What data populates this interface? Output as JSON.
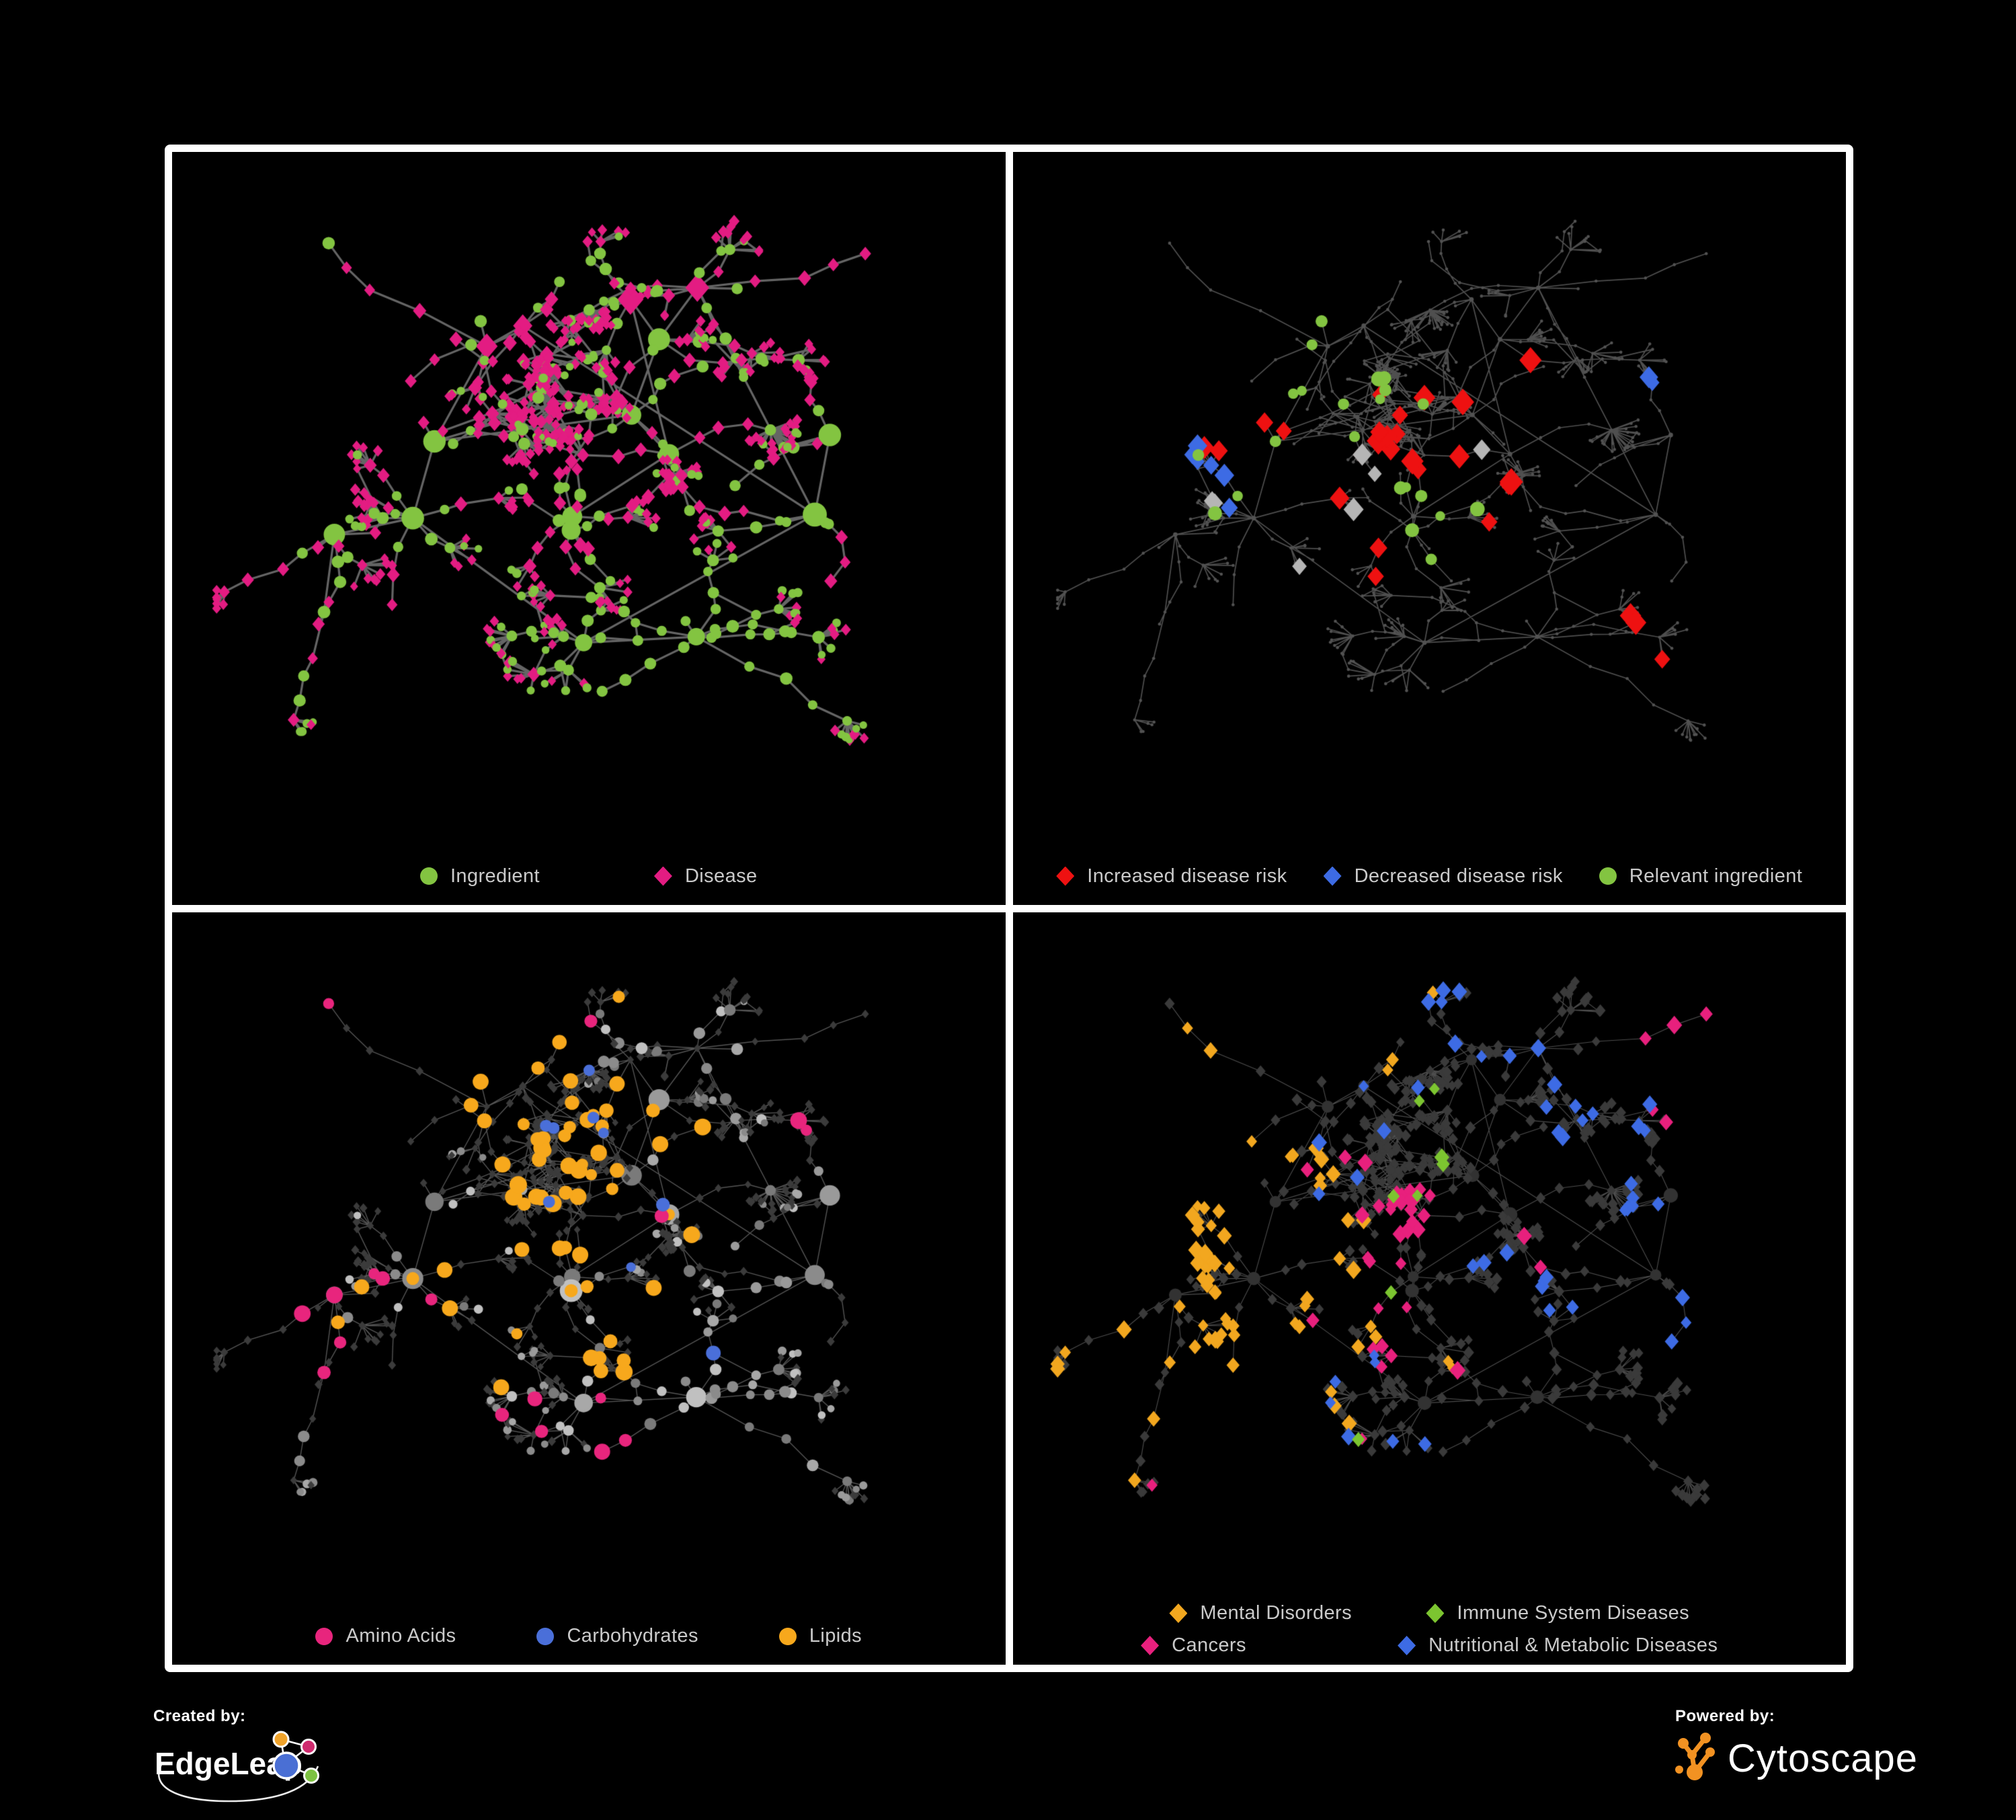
{
  "page": {
    "background": "#000000",
    "panel_border_color": "#ffffff",
    "legend_text_color": "#cacaca"
  },
  "network": {
    "seed": 1973,
    "clusters": 17,
    "green_clusters": [
      2,
      9
    ]
  },
  "panels": [
    {
      "id": "ingredient-disease-network",
      "legend_rows": [
        [
          {
            "label": "Ingredient",
            "shape": "circle",
            "color": "#83c441"
          },
          {
            "label": "Disease",
            "shape": "diamond",
            "color": "#e31c82"
          }
        ]
      ],
      "render": {
        "mode": "bicolor",
        "edge_color": "#6a6a6a",
        "edge_width": 3.2,
        "edge_alpha": 0.95,
        "circle_color": "#83c441",
        "diamond_color": "#e31c82"
      }
    },
    {
      "id": "disease-risk-network",
      "legend_rows": [
        [
          {
            "label": "Increased disease risk",
            "shape": "diamond",
            "color": "#ee1111"
          },
          {
            "label": "Decreased disease risk",
            "shape": "diamond",
            "color": "#3d6be4"
          },
          {
            "label": "Relevant ingredient",
            "shape": "circle",
            "color": "#83c441"
          }
        ]
      ],
      "render": {
        "mode": "dots",
        "edge_color": "#5d5d5d",
        "edge_width": 1.7,
        "edge_alpha": 0.85,
        "dot_color": "#525252",
        "highlights": [
          {
            "shape": "diamond",
            "color": "#ee1111",
            "size": 15,
            "only": "dis",
            "regions": [
              [
                0.43,
                0.4,
                0.09,
                10
              ],
              [
                0.27,
                0.4,
                0.07,
                4
              ],
              [
                0.54,
                0.46,
                0.09,
                5
              ],
              [
                0.6,
                0.33,
                0.05,
                2
              ],
              [
                0.41,
                0.6,
                0.04,
                2
              ],
              [
                0.72,
                0.72,
                0.04,
                2
              ],
              [
                0.78,
                0.8,
                0.03,
                1
              ],
              [
                0.35,
                0.52,
                0.04,
                1
              ]
            ]
          },
          {
            "shape": "diamond",
            "color": "#3d6be4",
            "size": 13,
            "only": "dis",
            "regions": [
              [
                0.22,
                0.44,
                0.05,
                4
              ],
              [
                0.2,
                0.37,
                0.03,
                1
              ],
              [
                0.85,
                0.32,
                0.03,
                2
              ],
              [
                0.25,
                0.5,
                0.03,
                1
              ]
            ]
          },
          {
            "shape": "diamond",
            "color": "#b5b5b5",
            "size": 13,
            "only": "dis",
            "regions": [
              [
                0.2,
                0.35,
                0.04,
                2
              ],
              [
                0.43,
                0.47,
                0.07,
                3
              ],
              [
                0.3,
                0.6,
                0.04,
                1
              ],
              [
                0.55,
                0.42,
                0.05,
                1
              ]
            ]
          },
          {
            "shape": "circle",
            "color": "#83c441",
            "size": 9,
            "only": "ing",
            "regions": [
              [
                0.42,
                0.4,
                0.1,
                9
              ],
              [
                0.2,
                0.42,
                0.07,
                4
              ],
              [
                0.13,
                0.3,
                0.05,
                2
              ],
              [
                0.53,
                0.56,
                0.08,
                3
              ],
              [
                0.32,
                0.24,
                0.05,
                2
              ],
              [
                0.47,
                0.52,
                0.05,
                2
              ]
            ]
          }
        ]
      }
    },
    {
      "id": "nutrient-class-network",
      "legend_rows": [
        [
          {
            "label": "Amino Acids",
            "shape": "circle",
            "color": "#e8257d"
          },
          {
            "label": "Carbohydrates",
            "shape": "circle",
            "color": "#4a6fd9"
          },
          {
            "label": "Lipids",
            "shape": "circle",
            "color": "#f7a81c"
          }
        ]
      ],
      "render": {
        "mode": "gray",
        "edge_color": "#8d8d8d",
        "edge_width": 1.4,
        "edge_alpha": 0.6,
        "circle_grays": [
          "#a8a8a8",
          "#9a9a9a",
          "#8b8b8b",
          "#c0c0c0",
          "#7a7a7a"
        ],
        "diamond_color": "#3b3b3b",
        "highlights": [
          {
            "shape": "circle",
            "color": "#f7a81c",
            "size": 10.5,
            "only": "ing",
            "regions": [
              [
                0.48,
                0.41,
                0.07,
                26
              ],
              [
                0.44,
                0.3,
                0.09,
                10
              ],
              [
                0.55,
                0.62,
                0.045,
                6
              ],
              [
                0.38,
                0.52,
                0.08,
                6
              ],
              [
                0.56,
                0.3,
                0.1,
                5
              ],
              [
                0.33,
                0.15,
                0.06,
                4
              ],
              [
                0.62,
                0.5,
                0.08,
                3
              ],
              [
                0.28,
                0.64,
                0.08,
                3
              ],
              [
                0.6,
                0.05,
                0.04,
                1
              ]
            ]
          },
          {
            "shape": "circle",
            "color": "#e8257d",
            "size": 10,
            "only": "ing",
            "regions": [
              [
                0.1,
                0.45,
                0.09,
                3
              ],
              [
                0.22,
                0.7,
                0.07,
                2
              ],
              [
                0.42,
                0.78,
                0.07,
                3
              ],
              [
                0.55,
                0.75,
                0.05,
                2
              ],
              [
                0.64,
                0.44,
                0.05,
                1
              ],
              [
                0.78,
                0.3,
                0.05,
                2
              ],
              [
                0.43,
                0.02,
                0.04,
                1
              ],
              [
                0.06,
                0.3,
                0.04,
                1
              ],
              [
                0.3,
                0.5,
                0.05,
                2
              ],
              [
                0.52,
                0.9,
                0.04,
                1
              ]
            ]
          },
          {
            "shape": "circle",
            "color": "#4a6fd9",
            "size": 9,
            "only": "ing",
            "regions": [
              [
                0.46,
                0.35,
                0.06,
                5
              ],
              [
                0.52,
                0.42,
                0.04,
                2
              ],
              [
                0.05,
                0.25,
                0.03,
                1
              ],
              [
                0.66,
                0.64,
                0.05,
                1
              ],
              [
                0.4,
                0.22,
                0.05,
                1
              ]
            ]
          }
        ]
      }
    },
    {
      "id": "disease-class-network",
      "legend_rows": [
        [
          {
            "label": "Mental Disorders",
            "shape": "diamond",
            "color": "#f2a71f"
          },
          {
            "label": "Immune System Diseases",
            "shape": "diamond",
            "color": "#7cc530"
          }
        ],
        [
          {
            "label": "Cancers",
            "shape": "diamond",
            "color": "#e8207d"
          },
          {
            "label": "Nutritional & Metabolic Diseases",
            "shape": "diamond",
            "color": "#3d6be4"
          }
        ]
      ],
      "render": {
        "mode": "darkdiamonds",
        "edge_color": "#9c9c9c",
        "edge_width": 1.1,
        "edge_alpha": 0.5,
        "diamond_color": "#3a3a3a",
        "hub_color": "#323232",
        "highlights": [
          {
            "shape": "diamond",
            "color": "#f2a71f",
            "size": 10,
            "only": "dis",
            "regions": [
              [
                0.22,
                0.55,
                0.085,
                42
              ],
              [
                0.28,
                0.45,
                0.09,
                12
              ],
              [
                0.17,
                0.66,
                0.06,
                8
              ],
              [
                0.33,
                0.6,
                0.05,
                4
              ],
              [
                0.42,
                0.08,
                0.05,
                3
              ],
              [
                0.55,
                0.76,
                0.04,
                2
              ],
              [
                0.25,
                0.1,
                0.04,
                2
              ]
            ]
          },
          {
            "shape": "diamond",
            "color": "#e8207d",
            "size": 10,
            "only": "dis",
            "regions": [
              [
                0.44,
                0.52,
                0.08,
                20
              ],
              [
                0.51,
                0.44,
                0.06,
                8
              ],
              [
                0.4,
                0.63,
                0.05,
                5
              ],
              [
                0.37,
                0.34,
                0.05,
                3
              ],
              [
                0.9,
                0.2,
                0.05,
                5
              ],
              [
                0.6,
                0.84,
                0.05,
                2
              ],
              [
                0.68,
                0.47,
                0.04,
                2
              ],
              [
                0.18,
                0.8,
                0.03,
                1
              ]
            ]
          },
          {
            "shape": "diamond",
            "color": "#3d6be4",
            "size": 10,
            "only": "dis",
            "regions": [
              [
                0.61,
                0.57,
                0.05,
                10
              ],
              [
                0.73,
                0.27,
                0.08,
                9
              ],
              [
                0.81,
                0.44,
                0.06,
                6
              ],
              [
                0.28,
                0.07,
                0.08,
                6
              ],
              [
                0.48,
                0.04,
                0.05,
                3
              ],
              [
                0.37,
                0.66,
                0.05,
                4
              ],
              [
                0.6,
                0.12,
                0.05,
                3
              ],
              [
                0.88,
                0.55,
                0.05,
                3
              ],
              [
                0.5,
                0.93,
                0.04,
                2
              ],
              [
                0.3,
                0.9,
                0.03,
                1
              ],
              [
                0.12,
                0.3,
                0.04,
                2
              ],
              [
                0.94,
                0.36,
                0.03,
                2
              ]
            ]
          },
          {
            "shape": "diamond",
            "color": "#7cc530",
            "size": 10,
            "only": "dis",
            "regions": [
              [
                0.46,
                0.38,
                0.07,
                4
              ],
              [
                0.52,
                0.26,
                0.05,
                2
              ],
              [
                0.43,
                0.57,
                0.04,
                1
              ],
              [
                0.27,
                0.92,
                0.03,
                1
              ]
            ]
          }
        ]
      }
    }
  ],
  "branding": {
    "created_by_label": "Created by:",
    "created_by_name": "EdgeLeap",
    "powered_by_label": "Powered by:",
    "powered_by_name": "Cytoscape",
    "edgeleap_colors": {
      "orange": "#f0a32a",
      "pink": "#cf2a6e",
      "blue": "#4a6fd4",
      "green": "#7dc242"
    },
    "cytoscape_orange": "#f29222"
  }
}
